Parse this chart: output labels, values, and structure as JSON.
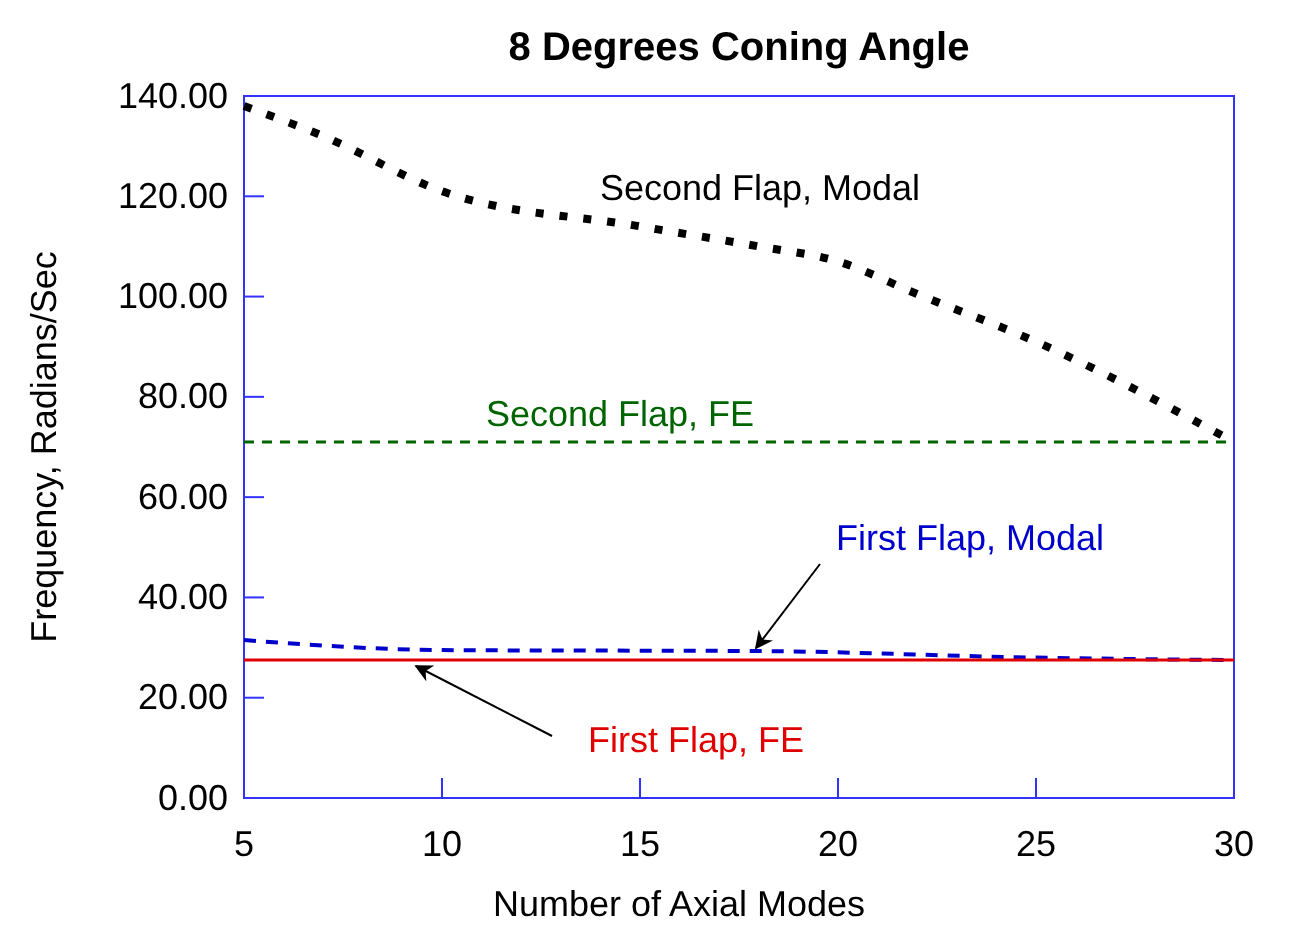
{
  "chart_data": {
    "type": "line",
    "title": "8 Degrees Coning Angle",
    "xlabel": "Number of Axial Modes",
    "ylabel": "Frequency, Radians/Sec",
    "xlim": [
      5,
      30
    ],
    "xticks": [
      5,
      10,
      15,
      20,
      25,
      30
    ],
    "ylim": [
      0,
      140
    ],
    "yticks": [
      {
        "value": 0,
        "label": "0.00"
      },
      {
        "value": 20,
        "label": "20.00"
      },
      {
        "value": 40,
        "label": "40.00"
      },
      {
        "value": 60,
        "label": "60.00"
      },
      {
        "value": 80,
        "label": "80.00"
      },
      {
        "value": 100,
        "label": "100.00"
      },
      {
        "value": 120,
        "label": "120.00"
      },
      {
        "value": 140,
        "label": "140.00"
      }
    ],
    "grid": false,
    "series": [
      {
        "name": "Second Flap, Modal",
        "color": "#000000",
        "line_style": "dotted",
        "x": [
          5,
          7,
          10,
          15,
          18,
          20,
          22,
          25,
          30
        ],
        "values": [
          138,
          132,
          121,
          114,
          110,
          107,
          100.5,
          91,
          71
        ]
      },
      {
        "name": "Second Flap, FE",
        "color": "#006400",
        "line_style": "dashed",
        "x": [
          5,
          30
        ],
        "values": [
          71,
          71
        ]
      },
      {
        "name": "First Flap, Modal",
        "color": "#0000cc",
        "line_style": "dashed",
        "x": [
          5,
          10,
          18,
          25,
          30
        ],
        "values": [
          31.5,
          29.5,
          29.3,
          28,
          27.5
        ]
      },
      {
        "name": "First Flap, FE",
        "color": "#e00000",
        "line_style": "solid",
        "x": [
          5,
          30
        ],
        "values": [
          27.5,
          27.5
        ]
      }
    ]
  }
}
